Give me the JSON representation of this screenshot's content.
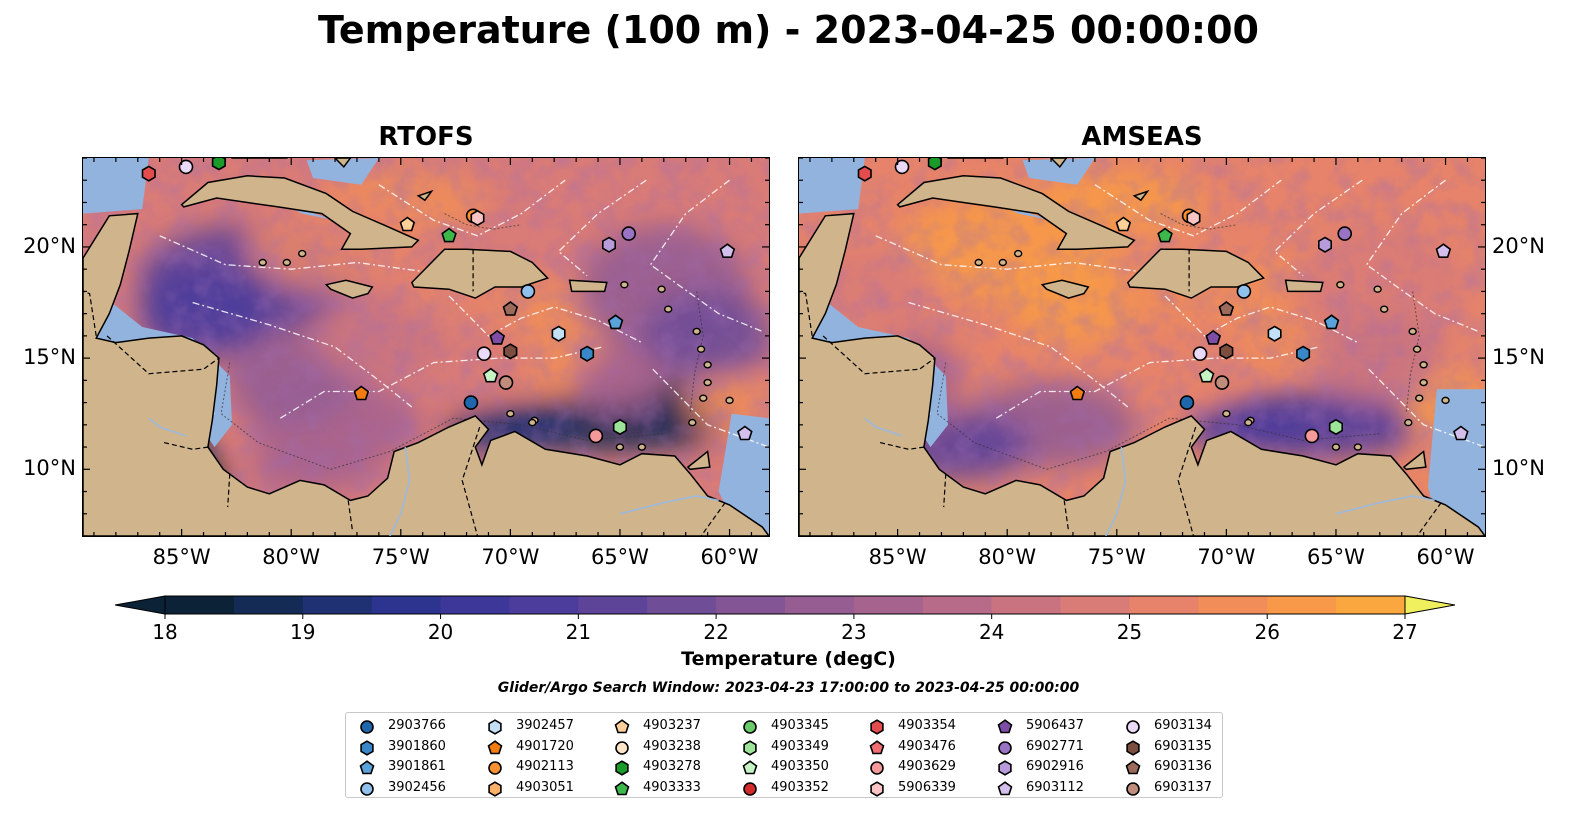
{
  "title": "Temperature (100 m) - 2023-04-25 00:00:00",
  "panels": [
    {
      "id": "rtofs",
      "title": "RTOFS"
    },
    {
      "id": "amseas",
      "title": "AMSEAS"
    }
  ],
  "axes": {
    "lon_ticks": [
      "85°W",
      "80°W",
      "75°W",
      "70°W",
      "65°W",
      "60°W"
    ],
    "lat_ticks": [
      "20°N",
      "15°N",
      "10°N"
    ],
    "lon_values": [
      -85,
      -80,
      -75,
      -70,
      -65,
      -60
    ],
    "lat_values": [
      20,
      15,
      10
    ],
    "lon_range": [
      -89.5,
      -58.2
    ],
    "lat_range": [
      7.0,
      24.0
    ]
  },
  "colorbar": {
    "label": "Temperature (degC)",
    "ticks": [
      "18",
      "19",
      "20",
      "21",
      "22",
      "23",
      "24",
      "25",
      "26",
      "27"
    ],
    "min": 18,
    "max": 27,
    "step": 0.5,
    "colors": [
      "#0b2237",
      "#142c55",
      "#1f3073",
      "#2c3490",
      "#3d3799",
      "#4c3c9b",
      "#5e4499",
      "#704d97",
      "#835595",
      "#955d92",
      "#a6638e",
      "#b86b88",
      "#c97381",
      "#d97b77",
      "#e6836a",
      "#f08d59",
      "#f79948",
      "#fba73f",
      "#fcb53d",
      "#fcc542",
      "#f3dc4e"
    ],
    "under_color": "#0b2237",
    "over_color": "#f0f05e"
  },
  "search_window": "Glider/Argo Search Window: 2023-04-23 17:00:00 to 2023-04-25 00:00:00",
  "colors": {
    "land": "#d0b48b",
    "shelf": "#93b3df",
    "contour": "#ffffff"
  },
  "legend": {
    "columns": [
      [
        {
          "id": "2903766",
          "marker": "circle",
          "color": "#1f67ad"
        },
        {
          "id": "3901860",
          "marker": "hexagon",
          "color": "#3a87c8"
        },
        {
          "id": "3901861",
          "marker": "pentagon",
          "color": "#5aa2da"
        },
        {
          "id": "3902456",
          "marker": "circle",
          "color": "#8fc1ec"
        }
      ],
      [
        {
          "id": "3902457",
          "marker": "hexagon",
          "color": "#c4e0f7"
        },
        {
          "id": "4901720",
          "marker": "pentagon",
          "color": "#f17c12"
        },
        {
          "id": "4902113",
          "marker": "circle",
          "color": "#f99132"
        },
        {
          "id": "4903051",
          "marker": "hexagon",
          "color": "#fdb168"
        }
      ],
      [
        {
          "id": "4903237",
          "marker": "pentagon",
          "color": "#fdcf99"
        },
        {
          "id": "4903238",
          "marker": "circle",
          "color": "#fde4c8"
        },
        {
          "id": "4903278",
          "marker": "hexagon",
          "color": "#1a9a28"
        },
        {
          "id": "4903333",
          "marker": "pentagon",
          "color": "#3cb84a"
        }
      ],
      [
        {
          "id": "4903345",
          "marker": "circle",
          "color": "#6acb6b"
        },
        {
          "id": "4903349",
          "marker": "hexagon",
          "color": "#9de39a"
        },
        {
          "id": "4903350",
          "marker": "pentagon",
          "color": "#c6f3c3"
        },
        {
          "id": "4903352",
          "marker": "circle",
          "color": "#d42a2a"
        }
      ],
      [
        {
          "id": "4903354",
          "marker": "hexagon",
          "color": "#e34d4d"
        },
        {
          "id": "4903476",
          "marker": "pentagon",
          "color": "#ef6e72"
        },
        {
          "id": "4903629",
          "marker": "circle",
          "color": "#f5999b"
        },
        {
          "id": "5906339",
          "marker": "hexagon",
          "color": "#fbc4c4"
        }
      ],
      [
        {
          "id": "5906437",
          "marker": "pentagon",
          "color": "#7e4ea6"
        },
        {
          "id": "6902771",
          "marker": "circle",
          "color": "#9a74c4"
        },
        {
          "id": "6902916",
          "marker": "hexagon",
          "color": "#b79bda"
        },
        {
          "id": "6903112",
          "marker": "pentagon",
          "color": "#d2bfec"
        }
      ],
      [
        {
          "id": "6903134",
          "marker": "circle",
          "color": "#ead9f7"
        },
        {
          "id": "6903135",
          "marker": "hexagon",
          "color": "#7c4e3f"
        },
        {
          "id": "6903136",
          "marker": "pentagon",
          "color": "#9b6a5a"
        },
        {
          "id": "6903137",
          "marker": "circle",
          "color": "#c08d7c"
        }
      ]
    ]
  },
  "platforms": [
    {
      "id": "4903354",
      "lon": -86.5,
      "lat": 23.3
    },
    {
      "id": "6903134",
      "lon": -84.8,
      "lat": 23.6
    },
    {
      "id": "4903237",
      "lon": -74.7,
      "lat": 21.0
    },
    {
      "id": "4902113",
      "lon": -71.7,
      "lat": 21.4
    },
    {
      "id": "5906339",
      "lon": -71.5,
      "lat": 21.3
    },
    {
      "id": "4903333",
      "lon": -72.8,
      "lat": 20.5
    },
    {
      "id": "6902916",
      "lon": -65.5,
      "lat": 20.1
    },
    {
      "id": "6902771",
      "lon": -64.6,
      "lat": 20.6
    },
    {
      "id": "6903112",
      "lon": -60.1,
      "lat": 19.8
    },
    {
      "id": "3902456",
      "lon": -69.2,
      "lat": 18.0
    },
    {
      "id": "6903136",
      "lon": -70.0,
      "lat": 17.2
    },
    {
      "id": "3901861",
      "lon": -65.2,
      "lat": 16.6
    },
    {
      "id": "3902457",
      "lon": -67.8,
      "lat": 16.1
    },
    {
      "id": "5906437",
      "lon": -70.6,
      "lat": 15.9
    },
    {
      "id": "6903135",
      "lon": -70.0,
      "lat": 15.3
    },
    {
      "id": "6903134",
      "lon": -71.2,
      "lat": 15.2
    },
    {
      "id": "3901860",
      "lon": -66.5,
      "lat": 15.2
    },
    {
      "id": "4903350",
      "lon": -70.9,
      "lat": 14.2
    },
    {
      "id": "6903137",
      "lon": -70.2,
      "lat": 13.9
    },
    {
      "id": "4901720",
      "lon": -76.8,
      "lat": 13.4
    },
    {
      "id": "2903766",
      "lon": -71.8,
      "lat": 13.0
    },
    {
      "id": "4903349",
      "lon": -65.0,
      "lat": 11.9
    },
    {
      "id": "4903629",
      "lon": -66.1,
      "lat": 11.5
    },
    {
      "id": "6903112",
      "lon": -59.3,
      "lat": 11.6
    },
    {
      "id": "4903278",
      "lon": -83.3,
      "lat": 23.8
    }
  ]
}
